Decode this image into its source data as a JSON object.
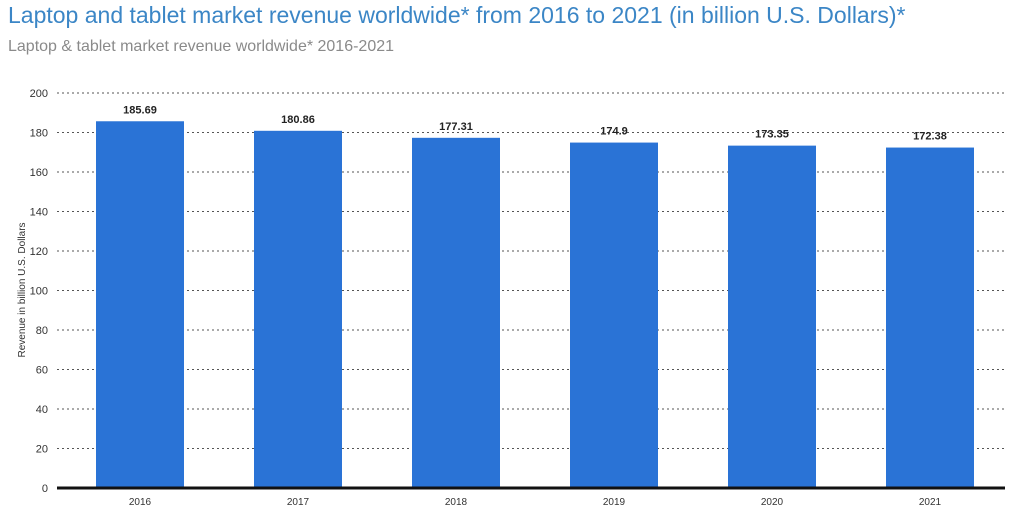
{
  "chart_data": {
    "type": "bar",
    "title": "Laptop and tablet market revenue worldwide* from 2016 to 2021 (in billion U.S. Dollars)*",
    "subtitle": "Laptop & tablet market revenue worldwide* 2016-2021",
    "categories": [
      "2016",
      "2017",
      "2018",
      "2019",
      "2020",
      "2021"
    ],
    "values": [
      185.69,
      180.86,
      177.31,
      174.9,
      173.35,
      172.38
    ],
    "data_labels": [
      "185.69",
      "180.86",
      "177.31",
      "174.9",
      "173.35",
      "172.38"
    ],
    "xlabel": "",
    "ylabel": "Revenue in billion U.S. Dollars",
    "ylim": [
      0,
      200
    ],
    "yticks": [
      0,
      20,
      40,
      60,
      80,
      100,
      120,
      140,
      160,
      180,
      200
    ],
    "grid": true,
    "bar_color": "#2a73d6"
  }
}
